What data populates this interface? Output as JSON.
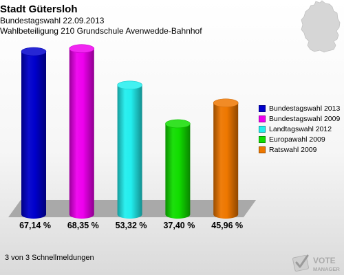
{
  "header": {
    "title": "Stadt Gütersloh",
    "subtitle1": "Bundestagswahl 22.09.2013",
    "subtitle2": "Wahlbeteiligung 210 Grundschule Avenwedde-Bahnhof"
  },
  "chart_data": {
    "type": "bar",
    "title": "Stadt Gütersloh",
    "categories": [
      "Bundestagswahl 2013",
      "Bundestagswahl 2009",
      "Landtagswahl 2012",
      "Europawahl 2009",
      "Ratswahl 2009"
    ],
    "values": [
      67.14,
      68.35,
      53.32,
      37.4,
      45.96
    ],
    "value_labels": [
      "67,14 %",
      "68,35 %",
      "53,32 %",
      "37,40 %",
      "45,96 %"
    ],
    "colors": [
      "#0000cc",
      "#ee00ee",
      "#22eeee",
      "#11dd00",
      "#ee7700"
    ],
    "xlabel": "",
    "ylabel": "",
    "ylim": [
      0,
      80
    ],
    "grid": false,
    "legend_position": "right",
    "style": "3d-cylinders"
  },
  "legend": {
    "items": [
      {
        "label": "Bundestagswahl 2013",
        "color": "#0000cc"
      },
      {
        "label": "Bundestagswahl 2009",
        "color": "#ee00ee"
      },
      {
        "label": "Landtagswahl 2012",
        "color": "#22eeee"
      },
      {
        "label": "Europawahl 2009",
        "color": "#11dd00"
      },
      {
        "label": "Ratswahl 2009",
        "color": "#ee7700"
      }
    ]
  },
  "footer": {
    "text": "3 von 3 Schnellmeldungen"
  },
  "logo": {
    "line1": "VOTE",
    "line2": "MANAGER",
    "icon": "checkmark-ballot-icon"
  },
  "map": {
    "icon": "germany-map-icon"
  }
}
